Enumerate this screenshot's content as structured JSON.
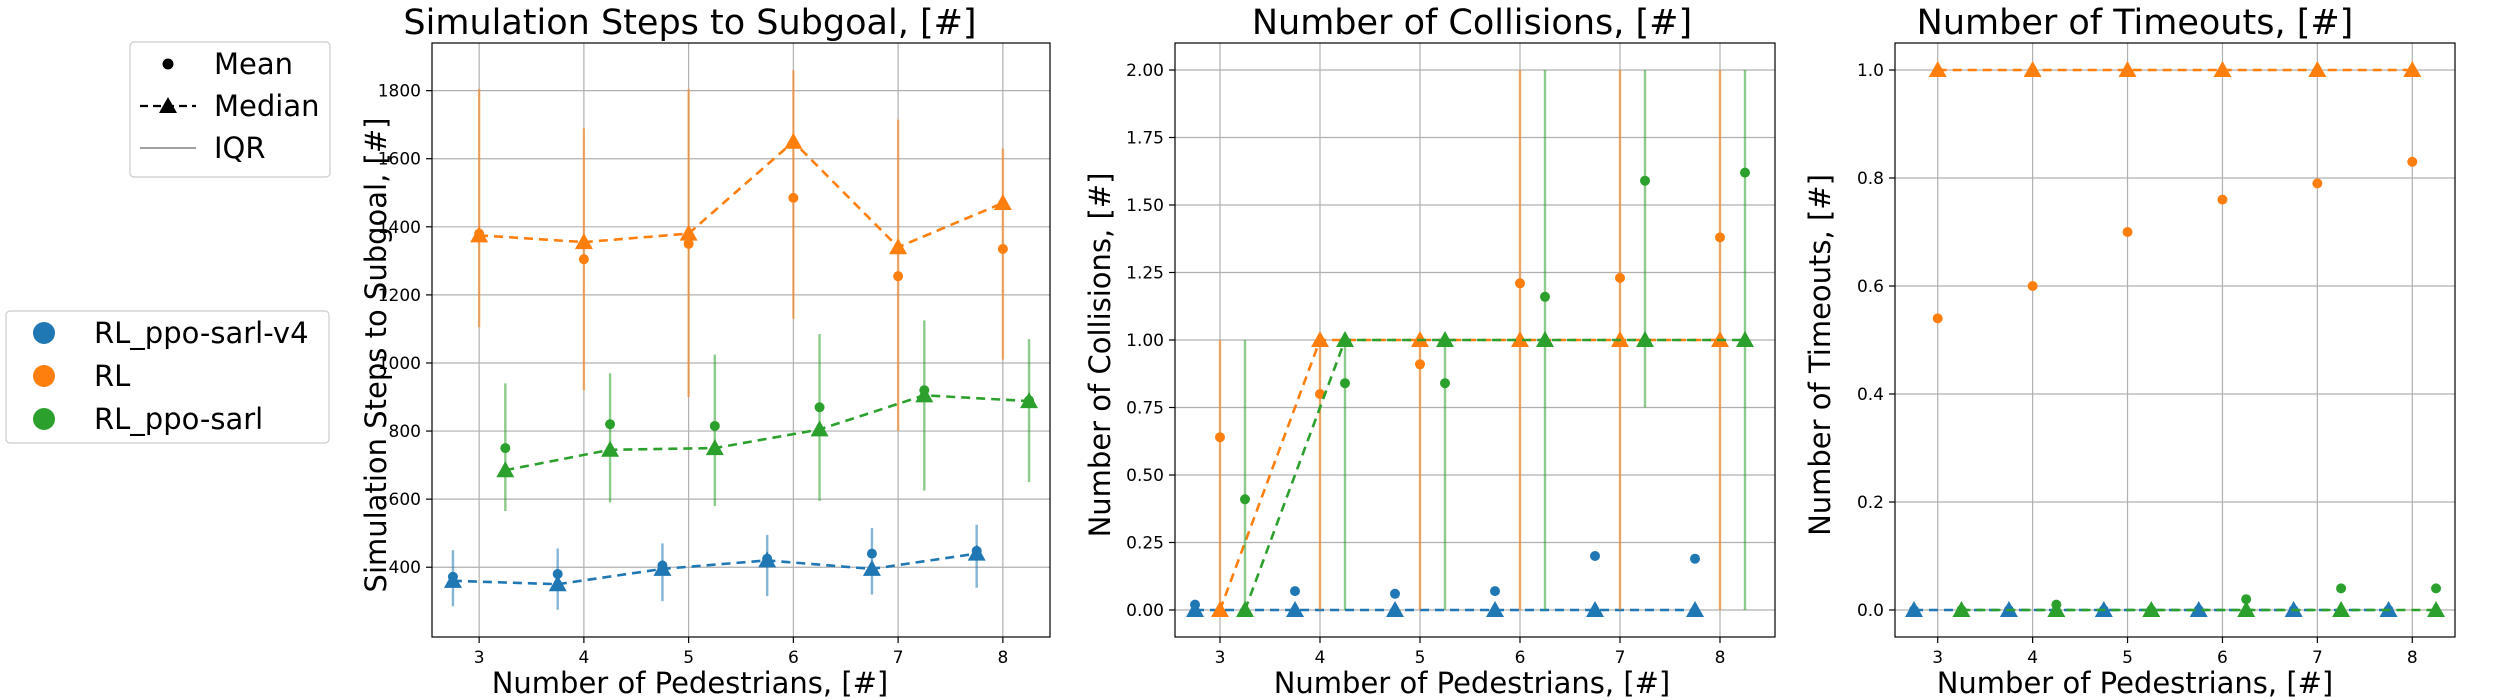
{
  "legend_stats": {
    "mean": "Mean",
    "median": "Median",
    "iqr": "IQR"
  },
  "legend_series": [
    {
      "name": "RL_ppo-sarl-v4",
      "color": "#1f77b4"
    },
    {
      "name": "RL",
      "color": "#ff7f0e"
    },
    {
      "name": "RL_ppo-sarl",
      "color": "#2ca02c"
    }
  ],
  "chart_data": [
    {
      "type": "line",
      "title": "Simulation Steps to Subgoal, [#]",
      "xlabel": "Number of Pedestrians, [#]",
      "ylabel": "Simulation Steps to Subgoal, [#]",
      "xlim": [
        2.55,
        8.45
      ],
      "ylim": [
        195,
        1940
      ],
      "xticks": [
        3,
        4,
        5,
        6,
        7,
        8
      ],
      "yticks": [
        400,
        600,
        800,
        1000,
        1200,
        1400,
        1600,
        1800
      ],
      "tick_decimals": 0,
      "grid": true,
      "series": [
        {
          "name": "RL_ppo-sarl-v4",
          "color": "#1f77b4",
          "x": [
            2.75,
            3.75,
            4.75,
            5.75,
            6.75,
            7.75
          ],
          "mean": [
            372,
            380,
            405,
            425,
            440,
            448
          ],
          "median": [
            360,
            350,
            395,
            420,
            395,
            440
          ],
          "iqr_low": [
            285,
            275,
            300,
            315,
            320,
            340
          ],
          "iqr_high": [
            450,
            455,
            470,
            495,
            515,
            525
          ]
        },
        {
          "name": "RL",
          "color": "#ff7f0e",
          "x": [
            3,
            4,
            5,
            6,
            7,
            8
          ],
          "mean": [
            1380,
            1305,
            1350,
            1485,
            1255,
            1335
          ],
          "median": [
            1375,
            1355,
            1380,
            1650,
            1340,
            1470
          ],
          "iqr_low": [
            1105,
            920,
            900,
            1130,
            800,
            1010
          ],
          "iqr_high": [
            1805,
            1690,
            1805,
            1860,
            1715,
            1630
          ]
        },
        {
          "name": "RL_ppo-sarl",
          "color": "#2ca02c",
          "x": [
            3.25,
            4.25,
            5.25,
            6.25,
            7.25,
            8.25
          ],
          "mean": [
            750,
            820,
            815,
            870,
            920,
            890
          ],
          "median": [
            685,
            745,
            750,
            805,
            905,
            888
          ],
          "iqr_low": [
            565,
            590,
            580,
            595,
            625,
            650
          ],
          "iqr_high": [
            940,
            970,
            1025,
            1085,
            1125,
            1070
          ]
        }
      ]
    },
    {
      "type": "line",
      "title": "Number of Collisions, [#]",
      "xlabel": "Number of Pedestrians, [#]",
      "ylabel": "Number of Collisions, [#]",
      "xlim": [
        2.55,
        8.55
      ],
      "ylim": [
        -0.1,
        2.1
      ],
      "xticks": [
        3,
        4,
        5,
        6,
        7,
        8
      ],
      "yticks": [
        0.0,
        0.25,
        0.5,
        0.75,
        1.0,
        1.25,
        1.5,
        1.75,
        2.0
      ],
      "tick_decimals": 2,
      "grid": true,
      "series": [
        {
          "name": "RL_ppo-sarl-v4",
          "color": "#1f77b4",
          "x": [
            2.75,
            3.75,
            4.75,
            5.75,
            6.75,
            7.75
          ],
          "mean": [
            0.02,
            0.07,
            0.06,
            0.07,
            0.2,
            0.19
          ],
          "median": [
            0,
            0,
            0,
            0,
            0,
            0
          ],
          "iqr_low": [
            0,
            0,
            0,
            0,
            0,
            0
          ],
          "iqr_high": [
            0,
            0,
            0,
            0,
            0,
            0
          ]
        },
        {
          "name": "RL",
          "color": "#ff7f0e",
          "x": [
            3,
            4,
            5,
            6,
            7,
            8
          ],
          "mean": [
            0.64,
            0.8,
            0.91,
            1.21,
            1.23,
            1.38
          ],
          "median": [
            0,
            1,
            1,
            1,
            1,
            1
          ],
          "iqr_low": [
            0,
            0,
            0,
            0,
            0,
            0
          ],
          "iqr_high": [
            1,
            1,
            1,
            2,
            2,
            2
          ]
        },
        {
          "name": "RL_ppo-sarl",
          "color": "#2ca02c",
          "x": [
            3.25,
            4.25,
            5.25,
            6.25,
            7.25,
            8.25
          ],
          "mean": [
            0.41,
            0.84,
            0.84,
            1.16,
            1.59,
            1.62
          ],
          "median": [
            0,
            1,
            1,
            1,
            1,
            1
          ],
          "iqr_low": [
            0,
            0,
            0,
            0,
            0.75,
            0
          ],
          "iqr_high": [
            1,
            1,
            1,
            2,
            2,
            2
          ]
        }
      ]
    },
    {
      "type": "line",
      "title": "Number of Timeouts, [#]",
      "xlabel": "Number of Pedestrians, [#]",
      "ylabel": "Number of Timeouts, [#]",
      "xlim": [
        2.55,
        8.45
      ],
      "ylim": [
        -0.05,
        1.05
      ],
      "xticks": [
        3,
        4,
        5,
        6,
        7,
        8
      ],
      "yticks": [
        0.0,
        0.2,
        0.4,
        0.6,
        0.8,
        1.0
      ],
      "tick_decimals": 1,
      "grid": true,
      "series": [
        {
          "name": "RL_ppo-sarl-v4",
          "color": "#1f77b4",
          "x": [
            2.75,
            3.75,
            4.75,
            5.75,
            6.75,
            7.75
          ],
          "mean": [
            0,
            0,
            0,
            0,
            0,
            0
          ],
          "median": [
            0,
            0,
            0,
            0,
            0,
            0
          ],
          "iqr_low": [
            0,
            0,
            0,
            0,
            0,
            0
          ],
          "iqr_high": [
            0,
            0,
            0,
            0,
            0,
            0
          ]
        },
        {
          "name": "RL",
          "color": "#ff7f0e",
          "x": [
            3,
            4,
            5,
            6,
            7,
            8
          ],
          "mean": [
            0.54,
            0.6,
            0.7,
            0.76,
            0.79,
            0.83
          ],
          "median": [
            1,
            1,
            1,
            1,
            1,
            1
          ],
          "iqr_low": [
            1,
            1,
            1,
            1,
            1,
            1
          ],
          "iqr_high": [
            1,
            1,
            1,
            1,
            1,
            1
          ]
        },
        {
          "name": "RL_ppo-sarl",
          "color": "#2ca02c",
          "x": [
            3.25,
            4.25,
            5.25,
            6.25,
            7.25,
            8.25
          ],
          "mean": [
            0,
            0.01,
            0,
            0.02,
            0.04,
            0.04
          ],
          "median": [
            0,
            0,
            0,
            0,
            0,
            0
          ],
          "iqr_low": [
            0,
            0,
            0,
            0,
            0,
            0
          ],
          "iqr_high": [
            0,
            0,
            0,
            0,
            0,
            0
          ]
        }
      ]
    }
  ]
}
